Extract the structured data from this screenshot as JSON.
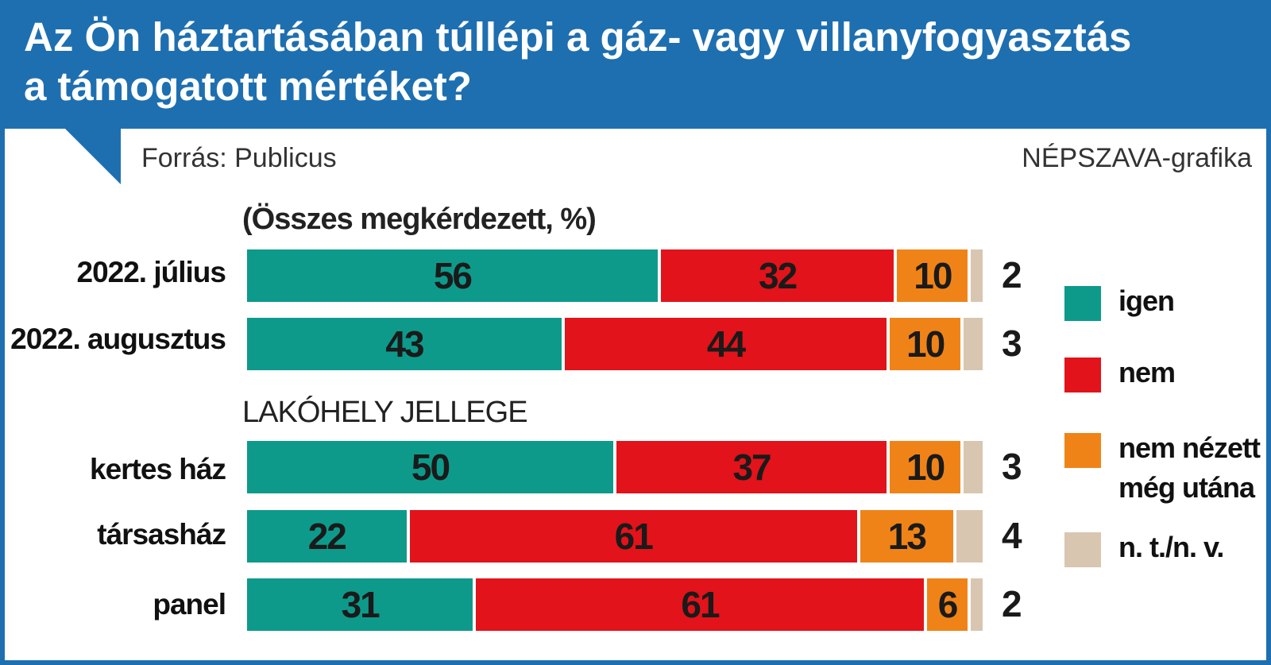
{
  "header": {
    "title_line1": "Az Ön háztartásában túllépi a gáz- vagy villanyfogyasztás",
    "title_line2": "a támogatott mértéket?"
  },
  "source": "Forrás: Publicus",
  "credit": "NÉPSZAVA-grafika",
  "colors": {
    "header_blue": "#1e6fb0",
    "igen": "#0e9a8b",
    "nem": "#e2131a",
    "nem_nezett": "#f08318",
    "nt_nv": "#d9c6b1"
  },
  "chart_data": {
    "type": "bar",
    "orientation": "horizontal",
    "stacked": true,
    "subtitle": "(Összes megkérdezett, %)",
    "section_label": "LAKÓHELY JELLEGE",
    "categories": [
      "2022. július",
      "2022. augusztus",
      "kertes ház",
      "társasház",
      "panel"
    ],
    "series": [
      {
        "name": "igen",
        "values": [
          56,
          43,
          50,
          22,
          31
        ]
      },
      {
        "name": "nem",
        "values": [
          32,
          44,
          37,
          61,
          61
        ]
      },
      {
        "name": "nem nézett még utána",
        "values": [
          10,
          10,
          10,
          13,
          6
        ]
      },
      {
        "name": "n. t./n. v.",
        "values": [
          2,
          3,
          3,
          4,
          2
        ]
      }
    ],
    "legend": {
      "placement": "right",
      "items": [
        {
          "key": "igen",
          "lines": [
            "igen"
          ]
        },
        {
          "key": "nem",
          "lines": [
            "nem"
          ]
        },
        {
          "key": "nem_nezett",
          "lines": [
            "nem nézett",
            "még utána"
          ]
        },
        {
          "key": "nt_nv",
          "lines": [
            "n. t./n. v."
          ]
        }
      ]
    },
    "grid": false
  }
}
